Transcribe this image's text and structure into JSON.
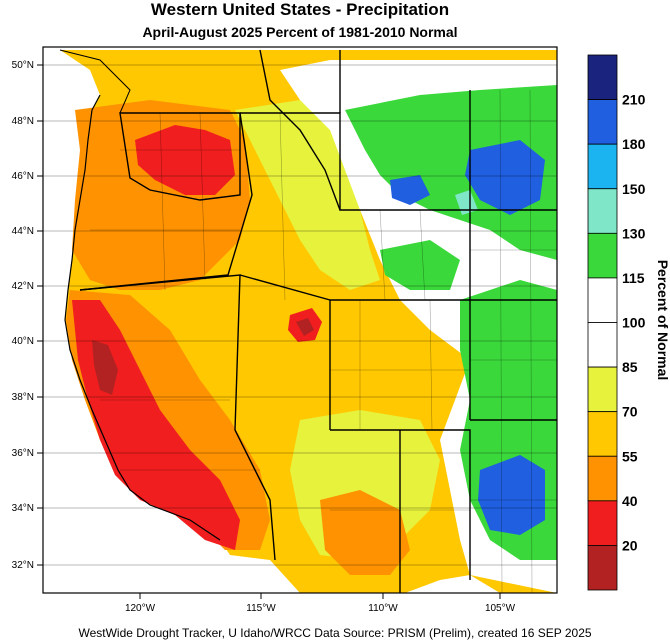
{
  "title": "Western United States - Precipitation",
  "subtitle": "April-August 2025  Percent of 1981-2010 Normal",
  "footer": "WestWide Drought Tracker, U Idaho/WRCC Data Source: PRISM (Prelim), created 16 SEP 2025",
  "lat_labels": [
    "50°N",
    "48°N",
    "46°N",
    "44°N",
    "42°N",
    "40°N",
    "38°N",
    "36°N",
    "34°N",
    "32°N"
  ],
  "lon_labels": [
    "120°W",
    "115°W",
    "110°W",
    "105°W"
  ],
  "colorbar": {
    "title": "Percent of Normal",
    "labels": [
      "210",
      "180",
      "150",
      "130",
      "115",
      "100",
      "85",
      "70",
      "55",
      "40",
      "20"
    ],
    "colors": [
      "#1a237e",
      "#1f5fe0",
      "#1cb4f0",
      "#7fe6c8",
      "#3ad83a",
      "#ffffff",
      "#ffffff",
      "#e6f23c",
      "#ffc800",
      "#ff9200",
      "#f01e1e",
      "#b22222"
    ]
  },
  "map_colors": {
    "water": "#ffffff",
    "dry_dark": "#b22222",
    "dry_red": "#f01e1e",
    "dry_orange": "#ff9200",
    "mid_yellow": "#ffc800",
    "light_yellow": "#e6f23c",
    "normal": "#ffffff",
    "wet_green": "#3ad83a",
    "wet_aqua": "#7fe6c8",
    "wet_blue": "#1f5fe0"
  }
}
